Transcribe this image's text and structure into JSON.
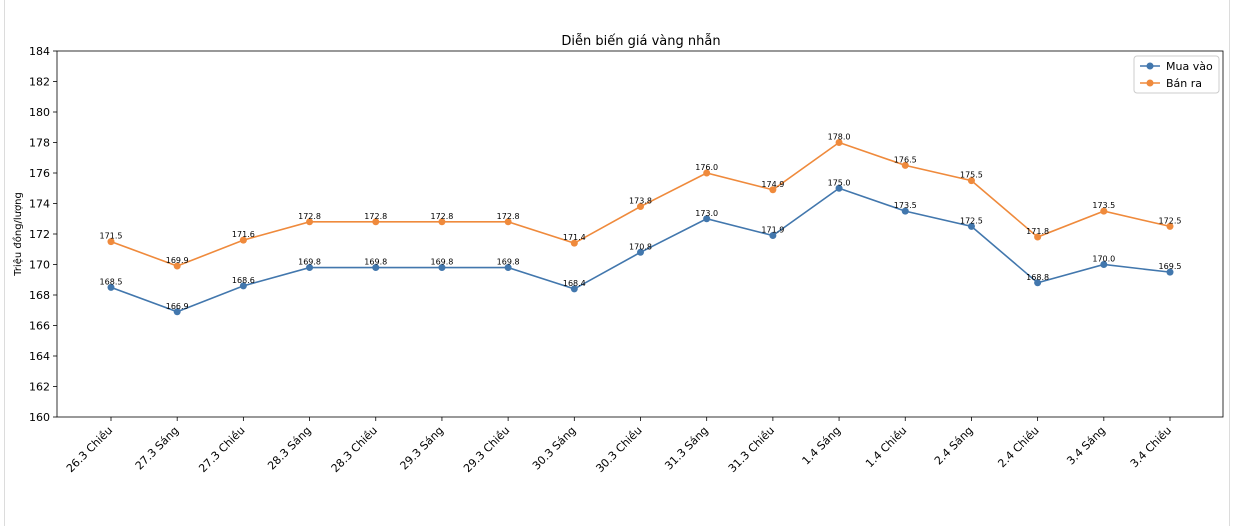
{
  "chart_data": {
    "type": "line",
    "title": "Diễn biến giá vàng nhẫn",
    "xlabel": "",
    "ylabel": "Triệu đồng/lượng",
    "ylim": [
      160,
      184
    ],
    "yticks": [
      160,
      162,
      164,
      166,
      168,
      170,
      172,
      174,
      176,
      178,
      180,
      182,
      184
    ],
    "grid": false,
    "legend_position": "top-right",
    "categories": [
      "26.3 Chiều",
      "27.3 Sáng",
      "27.3 Chiều",
      "28.3 Sáng",
      "28.3 Chiều",
      "29.3 Sáng",
      "29.3 Chiều",
      "30.3 Sáng",
      "30.3 Chiều",
      "31.3 Sáng",
      "31.3 Chiều",
      "1.4 Sáng",
      "1.4 Chiều",
      "2.4 Sáng",
      "2.4 Chiều",
      "3.4 Sáng",
      "3.4 Chiều"
    ],
    "series": [
      {
        "name": "Mua vào",
        "color": "#4277ad",
        "values": [
          168.5,
          166.9,
          168.6,
          169.8,
          169.8,
          169.8,
          169.8,
          168.4,
          170.8,
          173.0,
          171.9,
          175.0,
          173.5,
          172.5,
          168.8,
          170.0,
          169.5
        ],
        "labels": [
          "168.5",
          "166.9",
          "168.6",
          "169.8",
          "169.8",
          "169.8",
          "169.8",
          "168.4",
          "170.8",
          "173.0",
          "171.9",
          "175.0",
          "173.5",
          "172.5",
          "168.8",
          "170.0",
          "169.5"
        ]
      },
      {
        "name": "Bán ra",
        "color": "#ef8a3c",
        "values": [
          171.5,
          169.9,
          171.6,
          172.8,
          172.8,
          172.8,
          172.8,
          171.4,
          173.8,
          176.0,
          174.9,
          178.0,
          176.5,
          175.5,
          171.8,
          173.5,
          172.5
        ],
        "labels": [
          "171.5",
          "169.9",
          "171.6",
          "172.8",
          "172.8",
          "172.8",
          "172.8",
          "171.4",
          "173.8",
          "176.0",
          "174.9",
          "178.0",
          "176.5",
          "175.5",
          "171.8",
          "173.5",
          "172.5"
        ]
      }
    ]
  }
}
